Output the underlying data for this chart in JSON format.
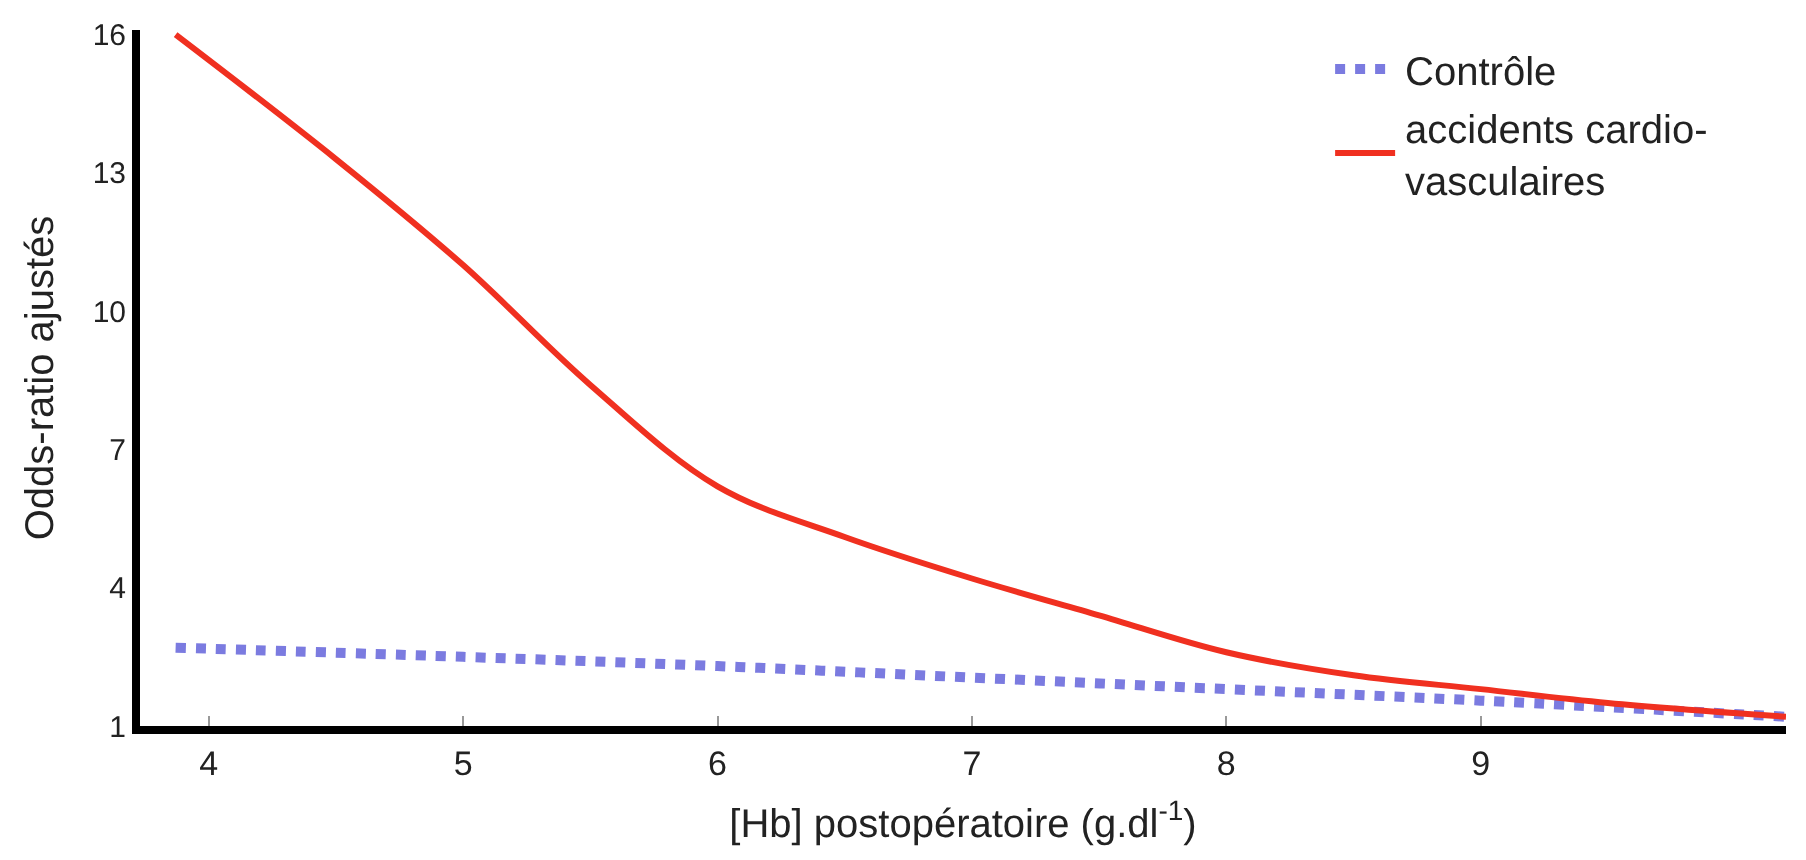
{
  "chart_data": {
    "type": "line",
    "xlabel": "[Hb] postopératoire (g.dl$^{-1}$)",
    "ylabel": "Odds-ratio ajustés",
    "xlim": [
      3.73,
      10.2
    ],
    "ylim": [
      1,
      16.1
    ],
    "xticks": [
      4,
      5,
      6,
      7,
      8,
      9
    ],
    "yticks": [
      1,
      4,
      7,
      10,
      13,
      16
    ],
    "legend": "top right",
    "marker": "none",
    "series": [
      {
        "name": "Contrôle",
        "color": "#7b7be0",
        "line_style": "dotted",
        "x": [
          3.87,
          5,
          6,
          7,
          8,
          9,
          10.2
        ],
        "values": [
          2.7,
          2.5,
          2.3,
          2.05,
          1.8,
          1.55,
          1.2
        ]
      },
      {
        "name": "accidents cardio-\nvasculaires",
        "color": "#f03020",
        "line_style": "solid",
        "x": [
          3.87,
          4.5,
          5,
          5.5,
          6,
          6.5,
          7,
          7.5,
          8,
          8.5,
          9,
          9.5,
          10.2
        ],
        "values": [
          16,
          13.3,
          11,
          8.4,
          6.2,
          5.1,
          4.2,
          3.4,
          2.6,
          2.1,
          1.8,
          1.5,
          1.2
        ]
      }
    ]
  }
}
